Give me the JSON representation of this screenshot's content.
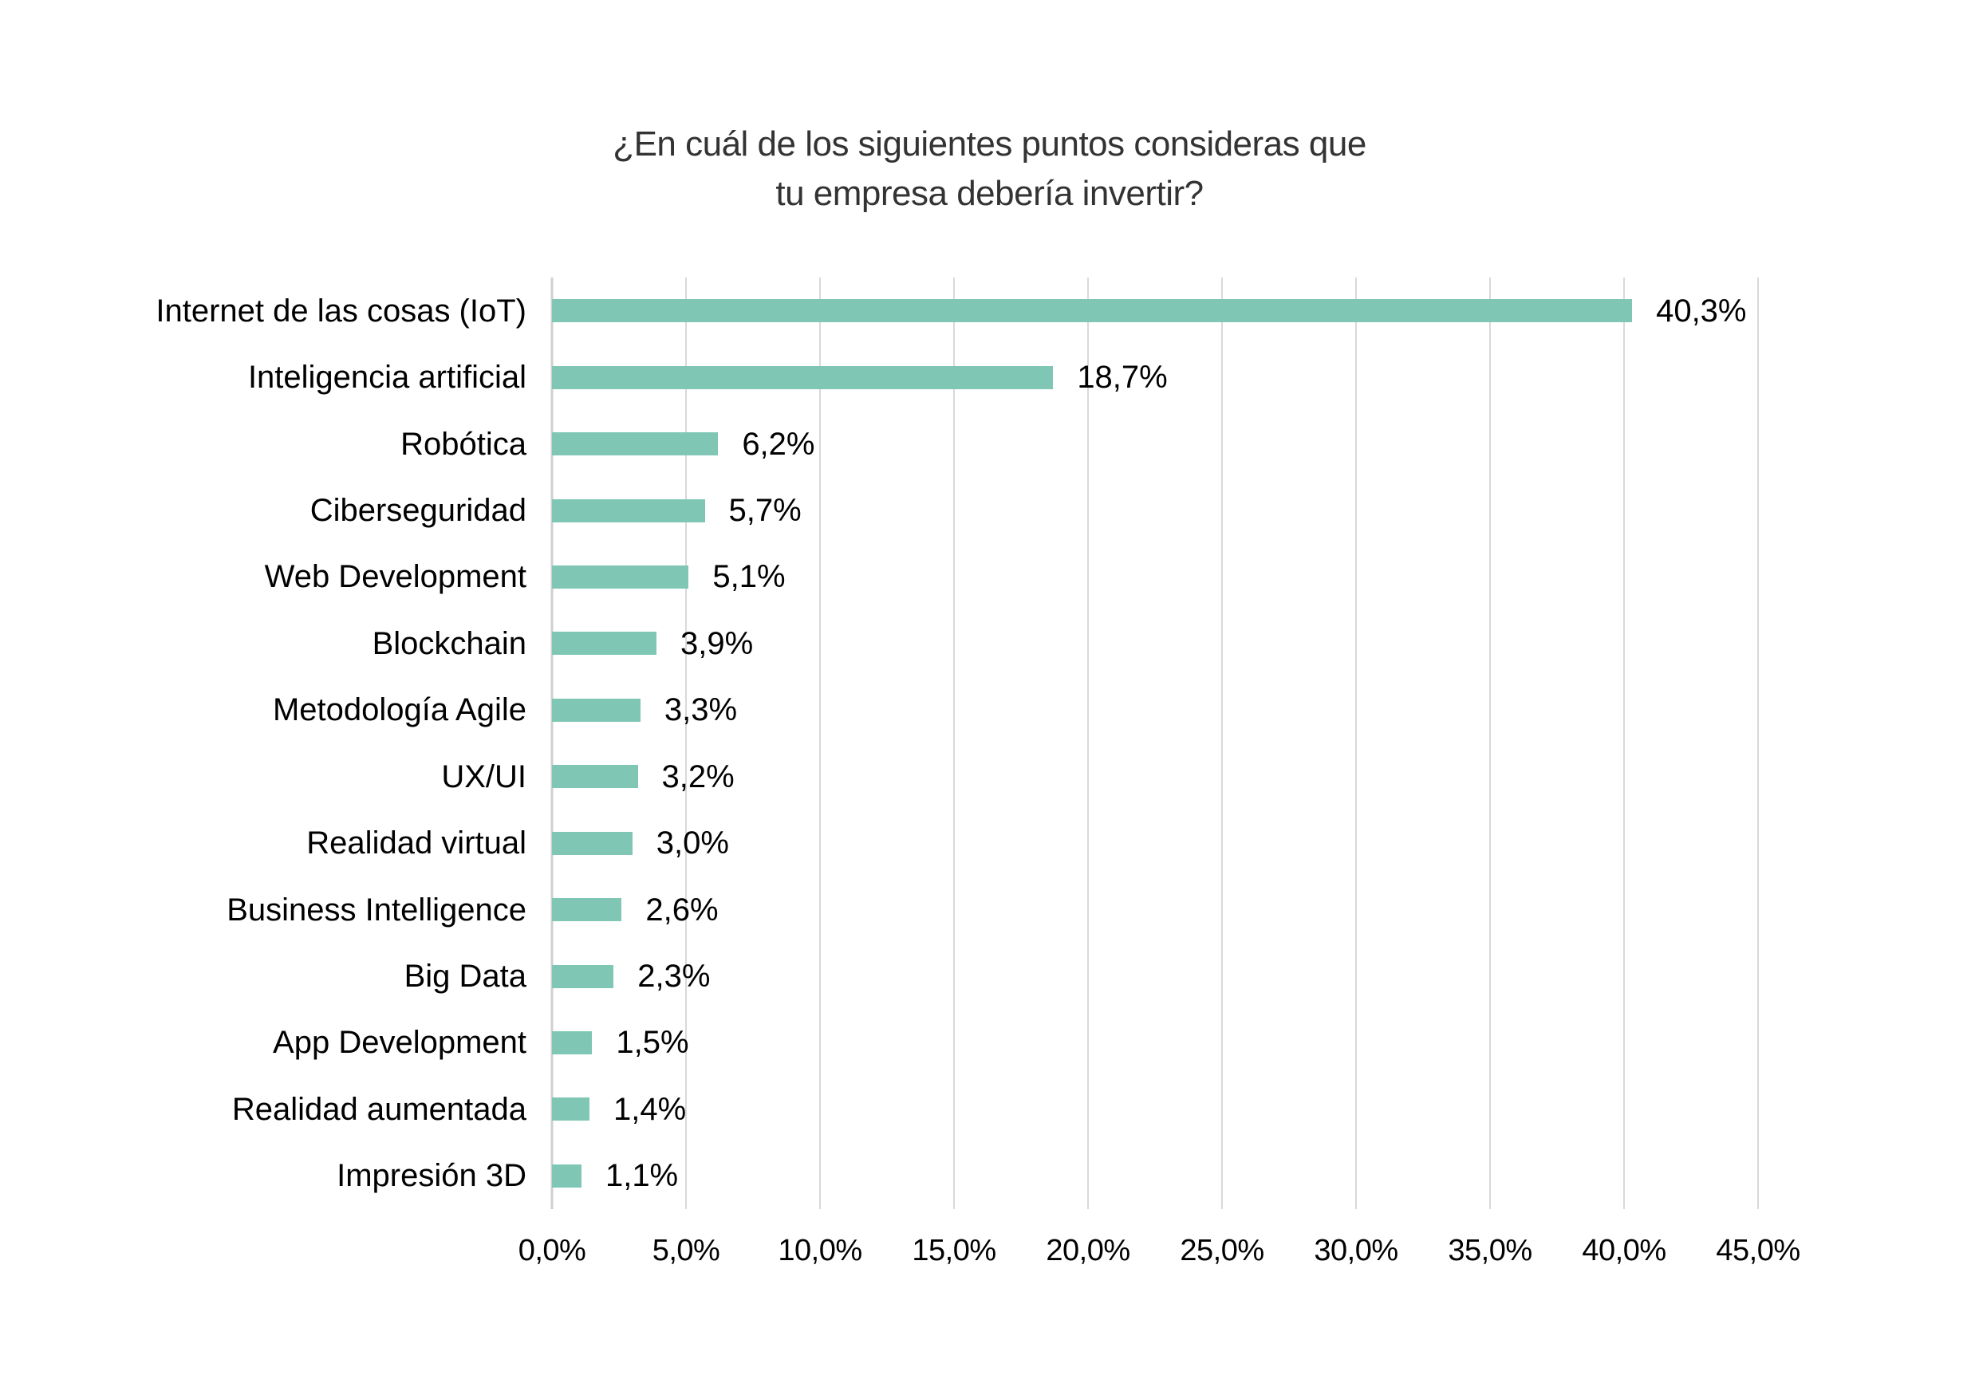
{
  "page": {
    "background": "#ffffff"
  },
  "title": {
    "line1": "¿En cuál de los siguientes puntos consideras que",
    "line2": "tu empresa debería invertir?"
  },
  "chart_data": {
    "type": "bar",
    "orientation": "horizontal",
    "title": "¿En cuál de los siguientes puntos consideras que tu empresa debería invertir?",
    "categories": [
      "Internet de las cosas (IoT)",
      "Inteligencia artificial",
      "Robótica",
      "Ciberseguridad",
      "Web Development",
      "Blockchain",
      "Metodología Agile",
      "UX/UI",
      "Realidad virtual",
      "Business Intelligence",
      "Big Data",
      "App Development",
      "Realidad aumentada",
      "Impresión 3D"
    ],
    "values": [
      40.3,
      18.7,
      6.2,
      5.7,
      5.1,
      3.9,
      3.3,
      3.2,
      3.0,
      2.6,
      2.3,
      1.5,
      1.4,
      1.1
    ],
    "value_labels": [
      "40,3%",
      "18,7%",
      "6,2%",
      "5,7%",
      "5,1%",
      "3,9%",
      "3,3%",
      "3,2%",
      "3,0%",
      "2,6%",
      "2,3%",
      "1,5%",
      "1,4%",
      "1,1%"
    ],
    "xlabel": "",
    "ylabel": "",
    "xlim": [
      0,
      45
    ],
    "x_ticks": [
      0,
      5,
      10,
      15,
      20,
      25,
      30,
      35,
      40,
      45
    ],
    "x_tick_labels": [
      "0,0%",
      "5,0%",
      "10,0%",
      "15,0%",
      "20,0%",
      "25,0%",
      "30,0%",
      "35,0%",
      "40,0%",
      "45,0%"
    ],
    "grid": "vertical",
    "legend": "none",
    "data_labels": "outside-end",
    "colors": {
      "bar": "#7fc7b4",
      "gridline": "#d9d9d9",
      "axis_line": "#cfcfcf",
      "label_text": "#000000",
      "title_text": "#333333"
    }
  }
}
